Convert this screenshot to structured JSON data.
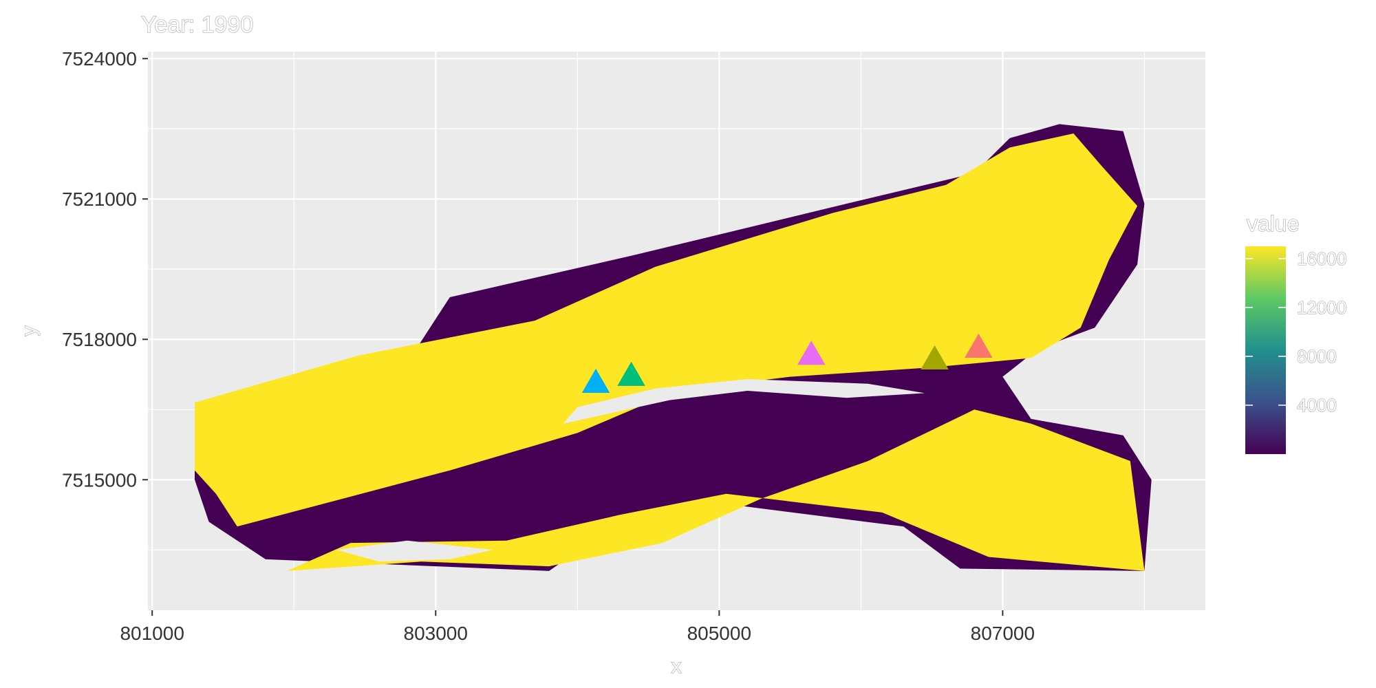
{
  "chart_data": {
    "type": "heatmap",
    "title": "Year: 1990",
    "xlabel": "x",
    "ylabel": "y",
    "xlim": [
      800970,
      808430
    ],
    "ylim": [
      7512210,
      7524150
    ],
    "x_ticks": [
      801000,
      803000,
      805000,
      807000
    ],
    "x_tick_labels": [
      "801000",
      "803000",
      "805000",
      "807000"
    ],
    "y_ticks": [
      7515000,
      7518000,
      7521000,
      7524000
    ],
    "y_tick_labels": [
      "7515000",
      "7518000",
      "7521000",
      "7524000"
    ],
    "panel_background": "#ebebeb",
    "grid": true,
    "raster": {
      "description_colors": {
        "high": "#fde725",
        "low": "#440154"
      },
      "polygons": [
        {
          "fill": "#440154",
          "points": [
            [
              801300,
              7516650
            ],
            [
              802800,
              7517500
            ],
            [
              803100,
              7518900
            ],
            [
              804400,
              7519800
            ],
            [
              805900,
              7520900
            ],
            [
              806800,
              7521550
            ],
            [
              807050,
              7522300
            ],
            [
              807400,
              7522600
            ],
            [
              807850,
              7522450
            ],
            [
              808000,
              7520900
            ],
            [
              807950,
              7519600
            ],
            [
              807650,
              7518250
            ],
            [
              807250,
              7517800
            ],
            [
              807000,
              7517200
            ],
            [
              807200,
              7516300
            ],
            [
              807850,
              7515950
            ],
            [
              808050,
              7515000
            ],
            [
              808000,
              7513050
            ],
            [
              806700,
              7513100
            ],
            [
              806300,
              7514000
            ],
            [
              805000,
              7514500
            ],
            [
              804200,
              7513900
            ],
            [
              803800,
              7513050
            ],
            [
              801800,
              7513300
            ],
            [
              801400,
              7514100
            ],
            [
              801300,
              7515000
            ]
          ]
        },
        {
          "fill": "#fde725",
          "points": [
            [
              801300,
              7516650
            ],
            [
              802450,
              7517650
            ],
            [
              803700,
              7518400
            ],
            [
              804550,
              7519550
            ],
            [
              805800,
              7520700
            ],
            [
              806600,
              7521300
            ],
            [
              807050,
              7522100
            ],
            [
              807500,
              7522400
            ],
            [
              807700,
              7521700
            ],
            [
              807950,
              7520850
            ],
            [
              807750,
              7519700
            ],
            [
              807550,
              7518250
            ],
            [
              807200,
              7517600
            ],
            [
              806500,
              7517400
            ],
            [
              805500,
              7517200
            ],
            [
              804700,
              7516900
            ],
            [
              804000,
              7516000
            ],
            [
              803100,
              7515200
            ],
            [
              802100,
              7514400
            ],
            [
              801600,
              7514000
            ],
            [
              801450,
              7514700
            ],
            [
              801300,
              7515200
            ]
          ]
        },
        {
          "fill": "#fde725",
          "points": [
            [
              801950,
              7513050
            ],
            [
              802900,
              7513250
            ],
            [
              803800,
              7513150
            ],
            [
              804600,
              7513650
            ],
            [
              805300,
              7514600
            ],
            [
              806050,
              7515400
            ],
            [
              806800,
              7516500
            ],
            [
              807200,
              7516200
            ],
            [
              807900,
              7515400
            ],
            [
              808000,
              7513050
            ],
            [
              806900,
              7513350
            ],
            [
              806150,
              7514300
            ],
            [
              805050,
              7514700
            ],
            [
              804300,
              7514250
            ],
            [
              803500,
              7513700
            ],
            [
              802400,
              7513650
            ]
          ]
        },
        {
          "fill": "#ebebeb",
          "points": [
            [
              803900,
              7516200
            ],
            [
              804650,
              7516700
            ],
            [
              805200,
              7516900
            ],
            [
              805900,
              7516750
            ],
            [
              806450,
              7516850
            ],
            [
              806050,
              7517050
            ],
            [
              805200,
              7517150
            ],
            [
              804550,
              7516950
            ],
            [
              804000,
              7516550
            ]
          ]
        },
        {
          "fill": "#ebebeb",
          "points": [
            [
              802300,
              7513500
            ],
            [
              802800,
              7513700
            ],
            [
              803400,
              7513500
            ],
            [
              803100,
              7513300
            ],
            [
              802600,
              7513250
            ]
          ]
        }
      ]
    },
    "series": [
      {
        "color": "#00b0f6",
        "x": 804130,
        "y": 7517050
      },
      {
        "color": "#00bf7d",
        "x": 804380,
        "y": 7517200
      },
      {
        "color": "#e76bf3",
        "x": 805650,
        "y": 7517650
      },
      {
        "color": "#a3a500",
        "x": 806520,
        "y": 7517550
      },
      {
        "color": "#f8766d",
        "x": 806830,
        "y": 7517800
      }
    ],
    "legend": {
      "title": "value",
      "placement": "right",
      "min": 0,
      "max": 17000,
      "ticks": [
        4000,
        8000,
        12000,
        16000
      ],
      "tick_labels": [
        "4000",
        "8000",
        "12000",
        "16000"
      ],
      "colors": [
        "#440154",
        "#3b528b",
        "#21908d",
        "#5dc963",
        "#fde725"
      ]
    }
  }
}
